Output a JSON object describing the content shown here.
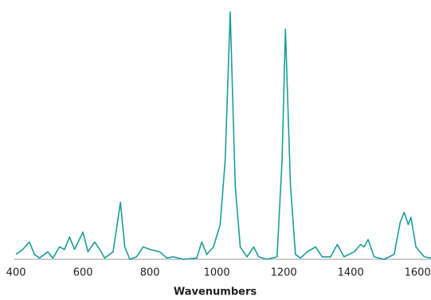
{
  "chart_data": {
    "type": "line",
    "x_label": "Wavenumbers",
    "xlim": [
      395,
      1640
    ],
    "xticks": [
      400,
      600,
      800,
      1000,
      1200,
      1400,
      1600
    ],
    "ylim": [
      0,
      100
    ],
    "series": [
      {
        "color": "#1b9e95",
        "x": [
          400,
          420,
          440,
          455,
          470,
          495,
          510,
          530,
          545,
          560,
          575,
          600,
          615,
          635,
          650,
          665,
          690,
          712,
          725,
          740,
          760,
          780,
          800,
          830,
          850,
          870,
          900,
          940,
          955,
          970,
          990,
          1010,
          1025,
          1040,
          1055,
          1070,
          1090,
          1110,
          1125,
          1150,
          1180,
          1195,
          1205,
          1220,
          1235,
          1250,
          1270,
          1295,
          1315,
          1340,
          1360,
          1380,
          1410,
          1430,
          1440,
          1452,
          1470,
          1500,
          1530,
          1548,
          1560,
          1572,
          1580,
          1595,
          1620,
          1640
        ],
        "values": [
          2,
          4,
          7,
          2,
          0.5,
          3,
          0.5,
          5,
          4,
          9,
          4,
          11,
          3,
          7,
          4,
          0.5,
          3,
          23,
          5,
          0,
          1,
          5,
          4,
          3,
          0.5,
          1,
          0,
          0.5,
          7,
          2,
          5,
          14,
          40,
          100,
          30,
          5,
          1,
          5,
          1,
          0,
          1,
          40,
          93,
          30,
          2,
          0.5,
          3,
          5,
          1,
          1,
          6,
          1,
          3,
          6,
          5,
          8,
          1,
          0,
          2,
          15,
          19,
          14,
          17,
          5,
          1,
          0.5
        ]
      }
    ]
  }
}
